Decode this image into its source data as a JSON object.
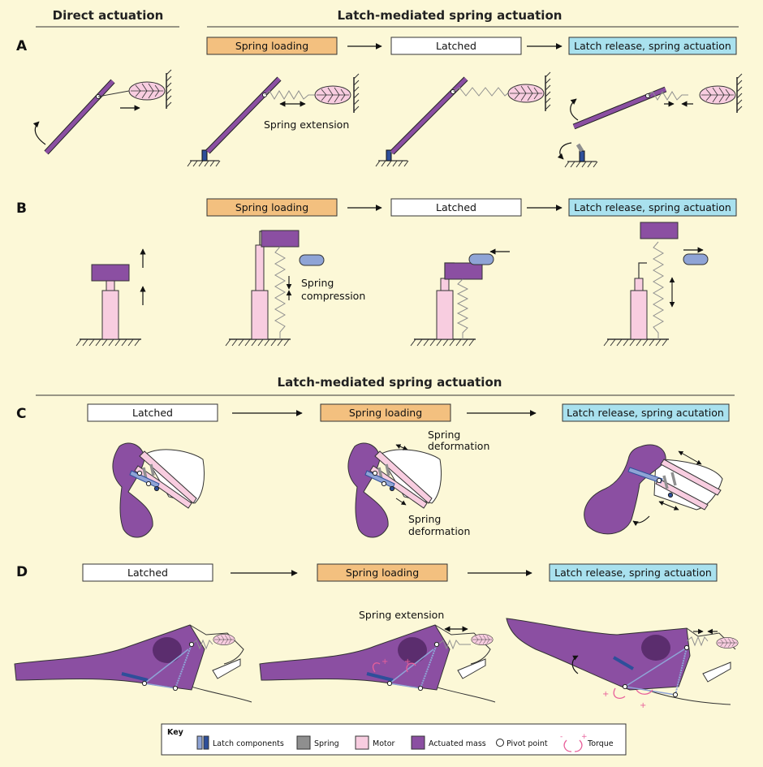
{
  "headers": {
    "direct": "Direct actuation",
    "latch_top": "Latch-mediated spring actuation",
    "latch_mid": "Latch-mediated spring actuation"
  },
  "panels": [
    "A",
    "B",
    "C",
    "D"
  ],
  "stages": {
    "spring_loading": "Spring loading",
    "latched": "Latched",
    "release": "Latch release, spring actuation",
    "release_typo": "Latch release, spring acutation"
  },
  "annotations": {
    "spring_extension": "Spring extension",
    "spring": "Spring",
    "compression": "compression",
    "deformation": "deformation"
  },
  "key": {
    "title": "Key",
    "latch": "Latch components",
    "spring": "Spring",
    "motor": "Motor",
    "mass": "Actuated mass",
    "pivot": "Pivot point",
    "torque": "Torque"
  },
  "colors": {
    "background": "#fcf8d7",
    "loading": "#f3c07f",
    "release": "#a9e1ee",
    "mass": "#8b4fa2",
    "motor": "#f8cde0",
    "latch": "#2e4f9a",
    "spring": "#8f8f8f"
  }
}
